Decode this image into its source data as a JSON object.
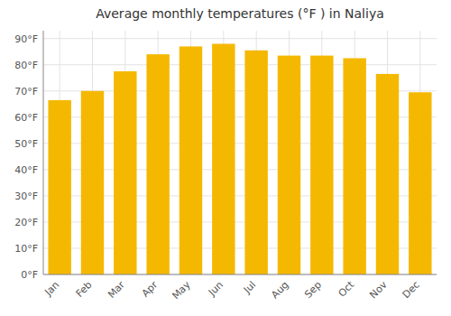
{
  "chart_data": {
    "type": "bar",
    "title": "Average monthly temperatures (°F ) in Naliya",
    "categories": [
      "Jan",
      "Feb",
      "Mar",
      "Apr",
      "May",
      "Jun",
      "Jul",
      "Aug",
      "Sep",
      "Oct",
      "Nov",
      "Dec"
    ],
    "values": [
      66.5,
      70.0,
      77.5,
      84.0,
      87.0,
      88.0,
      85.5,
      83.5,
      83.5,
      82.5,
      76.5,
      69.5
    ],
    "color": "#F5B800",
    "ylim": [
      0,
      93
    ],
    "yticks": [
      {
        "value": 0,
        "label": "0°F"
      },
      {
        "value": 10,
        "label": "10°F"
      },
      {
        "value": 20,
        "label": "20°F"
      },
      {
        "value": 30,
        "label": "30°F"
      },
      {
        "value": 40,
        "label": "40°F"
      },
      {
        "value": 50,
        "label": "50°F"
      },
      {
        "value": 60,
        "label": "60°F"
      },
      {
        "value": 70,
        "label": "70°F"
      },
      {
        "value": 80,
        "label": "80°F"
      },
      {
        "value": 90,
        "label": "90°F"
      }
    ],
    "grid": true
  }
}
